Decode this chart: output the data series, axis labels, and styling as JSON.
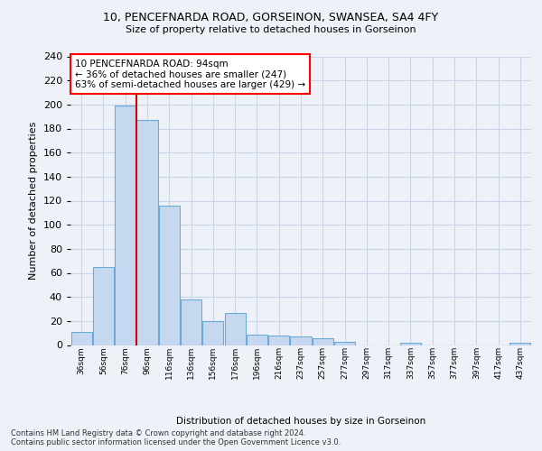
{
  "title_line1": "10, PENCEFNARDA ROAD, GORSEINON, SWANSEA, SA4 4FY",
  "title_line2": "Size of property relative to detached houses in Gorseinon",
  "xlabel": "Distribution of detached houses by size in Gorseinon",
  "ylabel": "Number of detached properties",
  "categories": [
    "36sqm",
    "56sqm",
    "76sqm",
    "96sqm",
    "116sqm",
    "136sqm",
    "156sqm",
    "176sqm",
    "196sqm",
    "216sqm",
    "237sqm",
    "257sqm",
    "277sqm",
    "297sqm",
    "317sqm",
    "337sqm",
    "357sqm",
    "377sqm",
    "397sqm",
    "417sqm",
    "437sqm"
  ],
  "values": [
    11,
    65,
    199,
    187,
    116,
    38,
    20,
    27,
    9,
    8,
    7,
    6,
    3,
    0,
    0,
    2,
    0,
    0,
    0,
    0,
    2
  ],
  "bar_color": "#c5d8f0",
  "bar_edge_color": "#6aaad4",
  "property_line_x": 2.5,
  "annotation_text": "10 PENCEFNARDA ROAD: 94sqm\n← 36% of detached houses are smaller (247)\n63% of semi-detached houses are larger (429) →",
  "annotation_box_color": "white",
  "annotation_box_edge_color": "red",
  "vline_color": "#cc0000",
  "grid_color": "#c8d4e8",
  "background_color": "#eef2f8",
  "footer_line1": "Contains HM Land Registry data © Crown copyright and database right 2024.",
  "footer_line2": "Contains public sector information licensed under the Open Government Licence v3.0.",
  "ylim": [
    0,
    240
  ],
  "yticks": [
    0,
    20,
    40,
    60,
    80,
    100,
    120,
    140,
    160,
    180,
    200,
    220,
    240
  ]
}
